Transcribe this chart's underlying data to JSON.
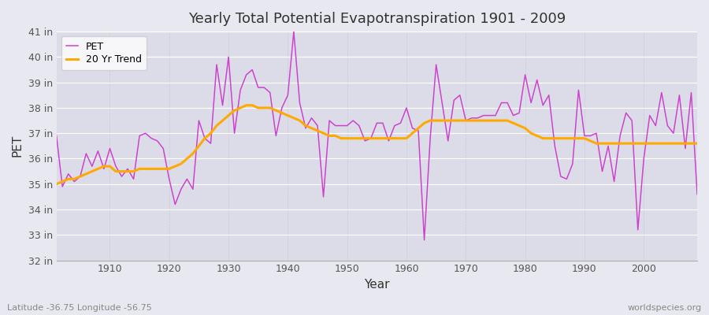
{
  "title": "Yearly Total Potential Evapotranspiration 1901 - 2009",
  "xlabel": "Year",
  "ylabel": "PET",
  "pet_color": "#cc44cc",
  "trend_color": "#ffaa00",
  "bg_color": "#e8e8f0",
  "plot_bg_color": "#dcdce8",
  "legend_labels": [
    "PET",
    "20 Yr Trend"
  ],
  "ylim": [
    32,
    41
  ],
  "xlim": [
    1901,
    2009
  ],
  "yticks": [
    32,
    33,
    34,
    35,
    36,
    37,
    38,
    39,
    40,
    41
  ],
  "xticks": [
    1910,
    1920,
    1930,
    1940,
    1950,
    1960,
    1970,
    1980,
    1990,
    2000
  ],
  "caption_left": "Latitude -36.75 Longitude -56.75",
  "caption_right": "worldspecies.org",
  "pet_values": [
    36.9,
    34.9,
    35.4,
    35.1,
    35.3,
    36.2,
    35.7,
    36.3,
    35.6,
    36.4,
    35.7,
    35.3,
    35.6,
    35.2,
    36.9,
    37.0,
    36.8,
    36.7,
    36.4,
    35.2,
    34.2,
    34.8,
    35.2,
    34.8,
    37.5,
    36.8,
    36.6,
    39.7,
    38.1,
    40.0,
    37.0,
    38.7,
    39.3,
    39.5,
    38.8,
    38.8,
    38.6,
    36.9,
    38.0,
    38.5,
    41.0,
    38.2,
    37.2,
    37.6,
    37.3,
    34.5,
    37.5,
    37.3,
    37.3,
    37.3,
    37.5,
    37.3,
    36.7,
    36.8,
    37.4,
    37.4,
    36.7,
    37.3,
    37.4,
    38.0,
    37.2,
    37.1,
    32.8,
    36.8,
    39.7,
    38.2,
    36.7,
    38.3,
    38.5,
    37.5,
    37.6,
    37.6,
    37.7,
    37.7,
    37.7,
    38.2,
    38.2,
    37.7,
    37.8,
    39.3,
    38.2,
    39.1,
    38.1,
    38.5,
    36.5,
    35.3,
    35.2,
    35.8,
    38.7,
    36.9,
    36.9,
    37.0,
    35.5,
    36.5,
    35.1,
    36.9,
    37.8,
    37.5,
    33.2,
    36.0,
    37.7,
    37.3,
    38.6,
    37.3,
    37.0,
    38.5,
    36.4,
    38.6,
    34.6
  ],
  "trend_start_year": 1901,
  "trend_values": [
    35.0,
    35.1,
    35.2,
    35.2,
    35.3,
    35.4,
    35.5,
    35.6,
    35.7,
    35.7,
    35.5,
    35.5,
    35.5,
    35.5,
    35.6,
    35.6,
    35.6,
    35.6,
    35.6,
    35.6,
    35.7,
    35.8,
    36.0,
    36.2,
    36.5,
    36.8,
    37.0,
    37.3,
    37.5,
    37.7,
    37.9,
    38.0,
    38.1,
    38.1,
    38.0,
    38.0,
    38.0,
    37.9,
    37.8,
    37.7,
    37.6,
    37.5,
    37.3,
    37.2,
    37.1,
    37.0,
    36.9,
    36.9,
    36.8,
    36.8,
    36.8,
    36.8,
    36.8,
    36.8,
    36.8,
    36.8,
    36.8,
    36.8,
    36.8,
    36.8,
    37.0,
    37.2,
    37.4,
    37.5,
    37.5,
    37.5,
    37.5,
    37.5,
    37.5,
    37.5,
    37.5,
    37.5,
    37.5,
    37.5,
    37.5,
    37.5,
    37.5,
    37.4,
    37.3,
    37.2,
    37.0,
    36.9,
    36.8,
    36.8,
    36.8,
    36.8,
    36.8,
    36.8,
    36.8,
    36.8,
    36.7,
    36.6,
    36.6,
    36.6,
    36.6,
    36.6,
    36.6,
    36.6,
    36.6,
    36.6,
    36.6,
    36.6,
    36.6,
    36.6,
    36.6,
    36.6,
    36.6,
    36.6,
    36.6
  ]
}
